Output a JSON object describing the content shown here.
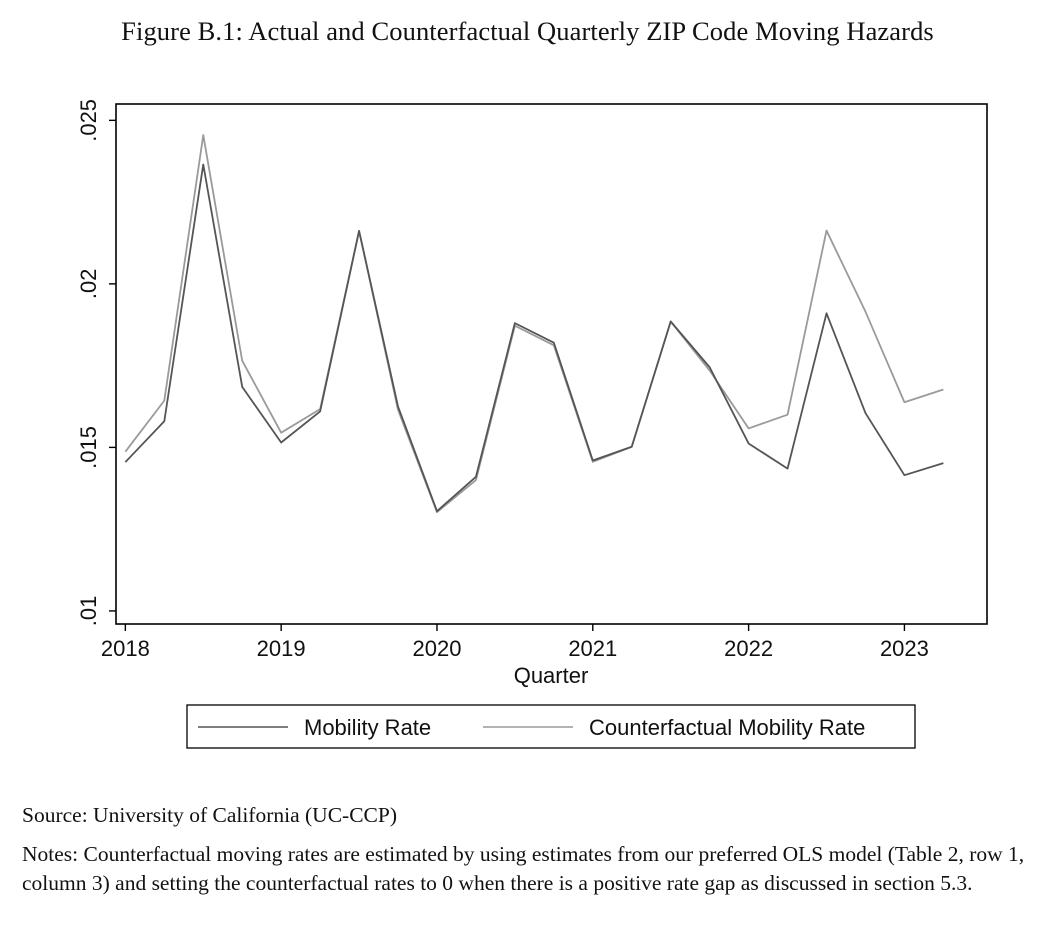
{
  "figure": {
    "title": "Figure B.1: Actual and Counterfactual Quarterly ZIP Code Moving Hazards",
    "source": "Source: University of California (UC-CCP)",
    "notes": "Notes: Counterfactual moving rates are estimated by using estimates from our preferred OLS model (Table 2, row 1, column 3) and setting the counterfactual rates to 0 when there is a positive rate gap as discussed in section 5.3."
  },
  "chart_data": {
    "type": "line",
    "title": "",
    "xlabel": "Quarter",
    "ylabel": "",
    "xlim": [
      2017.94,
      2023.53
    ],
    "ylim": [
      0.0096,
      0.0255
    ],
    "x_ticks": [
      2018,
      2019,
      2020,
      2021,
      2022,
      2023
    ],
    "x_tick_labels": [
      "2018",
      "2019",
      "2020",
      "2021",
      "2022",
      "2023"
    ],
    "y_ticks": [
      0.01,
      0.015,
      0.02,
      0.025
    ],
    "y_tick_labels": [
      ".01",
      ".015",
      ".02",
      ".025"
    ],
    "grid": false,
    "legend_position": "bottom",
    "x": [
      2018.0,
      2018.25,
      2018.5,
      2018.75,
      2019.0,
      2019.25,
      2019.5,
      2019.75,
      2020.0,
      2020.25,
      2020.5,
      2020.75,
      2021.0,
      2021.25,
      2021.5,
      2021.75,
      2022.0,
      2022.25,
      2022.5,
      2022.75,
      2023.0,
      2023.25
    ],
    "series": [
      {
        "name": "Mobility Rate",
        "color": "#555555",
        "values": [
          0.01455,
          0.0158,
          0.02365,
          0.01685,
          0.01515,
          0.0161,
          0.02162,
          0.01625,
          0.01305,
          0.0141,
          0.0188,
          0.0182,
          0.0146,
          0.01502,
          0.01885,
          0.01745,
          0.01512,
          0.01435,
          0.0191,
          0.01605,
          0.01415,
          0.01452
        ]
      },
      {
        "name": "Counterfactual Mobility Rate",
        "color": "#9a9a9a",
        "values": [
          0.01487,
          0.01643,
          0.02455,
          0.01765,
          0.01545,
          0.01617,
          0.02162,
          0.01615,
          0.01302,
          0.014,
          0.01872,
          0.01812,
          0.01456,
          0.01502,
          0.01885,
          0.01735,
          0.01558,
          0.016,
          0.02163,
          0.01915,
          0.01638,
          0.01677
        ]
      }
    ]
  }
}
